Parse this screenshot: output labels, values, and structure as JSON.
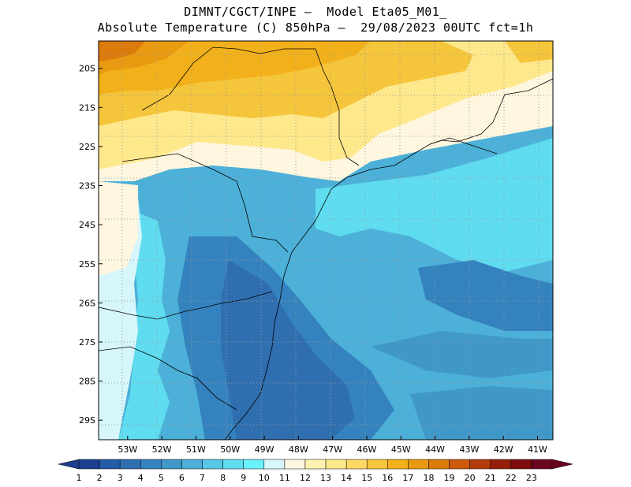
{
  "title": {
    "line1": "DIMNT/CGCT/INPE —  Model Eta05_M01_",
    "line2": "Absolute Temperature (C) 850hPa —  29/08/2023 00UTC fct=1h"
  },
  "axes": {
    "latitude_labels": [
      "20S",
      "21S",
      "22S",
      "23S",
      "24S",
      "25S",
      "26S",
      "27S",
      "28S",
      "29S"
    ],
    "longitude_labels": [
      "53W",
      "52W",
      "51W",
      "50W",
      "49W",
      "48W",
      "47W",
      "46W",
      "45W",
      "44W",
      "43W",
      "42W",
      "41W"
    ],
    "lat_range": [
      -29.5,
      -19.3
    ],
    "lon_range": [
      -53.85,
      -40.55
    ]
  },
  "colorbar": {
    "labels": [
      "1",
      "2",
      "3",
      "4",
      "5",
      "6",
      "7",
      "8",
      "9",
      "10",
      "11",
      "12",
      "13",
      "14",
      "15",
      "16",
      "17",
      "18",
      "19",
      "20",
      "21",
      "22",
      "23"
    ],
    "colors": [
      "#1c3f8f",
      "#245aa6",
      "#2f6fb0",
      "#3583be",
      "#3f98c8",
      "#4cb0d8",
      "#58c8e6",
      "#5fdcf0",
      "#6cf2fa",
      "#d6f6fb",
      "#fff6e0",
      "#fff2b0",
      "#fee88c",
      "#fbd766",
      "#f5c53c",
      "#f2b11a",
      "#e89a10",
      "#dc7a0c",
      "#cc5a0a",
      "#b23c0a",
      "#961e08",
      "#7d0c0c",
      "#6a0622"
    ],
    "extend": "both"
  },
  "map": {
    "background": "#4cb0d8",
    "grid": "dotted"
  }
}
